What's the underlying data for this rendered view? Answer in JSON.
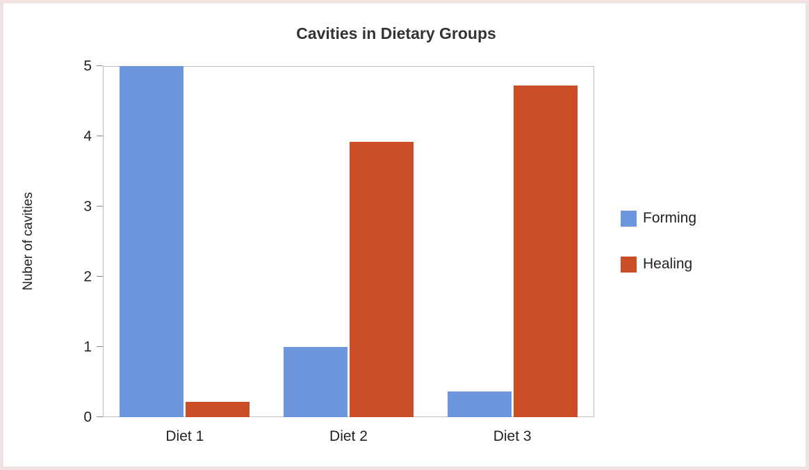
{
  "chart": {
    "title": "Cavities in Dietary Groups",
    "y_axis_label": "Nuber of cavities"
  },
  "chart_data": {
    "type": "bar",
    "title": "Cavities in Dietary Groups",
    "xlabel": "",
    "ylabel": "Nuber of cavities",
    "categories": [
      "Diet 1",
      "Diet 2",
      "Diet 3"
    ],
    "series": [
      {
        "name": "Forming",
        "color": "#6d96dd",
        "values": [
          5,
          1,
          0.37
        ]
      },
      {
        "name": "Healing",
        "color": "#cc4e27",
        "values": [
          0.22,
          3.92,
          4.72
        ]
      }
    ],
    "ylim": [
      0,
      5
    ],
    "yticks": [
      0,
      1,
      2,
      3,
      4,
      5
    ],
    "grid": false,
    "legend_position": "right",
    "plot_background": "#ffffff",
    "frame_border_color": "#f2e2e2"
  }
}
